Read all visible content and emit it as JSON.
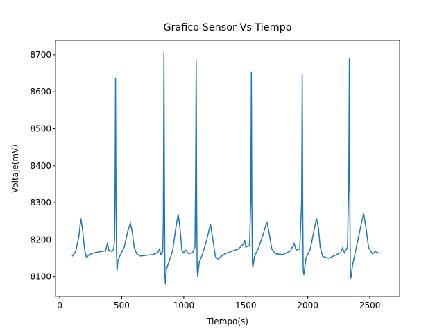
{
  "chart_data": {
    "type": "line",
    "title": "Grafico Sensor Vs Tiempo",
    "x_label": "Tiempo(s)",
    "y_label": "Voltaje(mV)",
    "x": [
      100,
      130,
      155,
      170,
      185,
      200,
      215,
      240,
      280,
      330,
      370,
      385,
      395,
      420,
      435,
      442,
      447,
      450,
      454,
      458,
      462,
      470,
      490,
      520,
      550,
      570,
      585,
      600,
      620,
      650,
      700,
      750,
      790,
      805,
      815,
      830,
      835,
      840,
      844,
      848,
      852,
      860,
      880,
      910,
      935,
      955,
      970,
      985,
      1000,
      1015,
      1040,
      1070,
      1090,
      1095,
      1100,
      1104,
      1108,
      1112,
      1125,
      1150,
      1185,
      1215,
      1235,
      1255,
      1275,
      1320,
      1380,
      1440,
      1480,
      1490,
      1500,
      1530,
      1540,
      1545,
      1549,
      1553,
      1557,
      1570,
      1600,
      1640,
      1670,
      1690,
      1710,
      1740,
      1800,
      1860,
      1890,
      1905,
      1935,
      1950,
      1955,
      1959,
      1963,
      1968,
      1985,
      2020,
      2050,
      2070,
      2085,
      2100,
      2120,
      2170,
      2220,
      2265,
      2280,
      2295,
      2320,
      2330,
      2335,
      2339,
      2343,
      2347,
      2360,
      2385,
      2420,
      2450,
      2470,
      2490,
      2520,
      2545,
      2580
    ],
    "series": [
      {
        "name": "Voltaje",
        "color": "#1f77b4",
        "values": [
          8155,
          8170,
          8210,
          8258,
          8225,
          8175,
          8152,
          8160,
          8165,
          8168,
          8170,
          8192,
          8172,
          8168,
          8175,
          8200,
          8400,
          8636,
          8300,
          8160,
          8115,
          8145,
          8160,
          8180,
          8225,
          8245,
          8220,
          8180,
          8162,
          8156,
          8158,
          8160,
          8165,
          8175,
          8160,
          8165,
          8250,
          8707,
          8350,
          8100,
          8080,
          8120,
          8140,
          8170,
          8230,
          8270,
          8230,
          8170,
          8165,
          8172,
          8162,
          8165,
          8180,
          8350,
          8685,
          8300,
          8120,
          8100,
          8140,
          8160,
          8200,
          8242,
          8200,
          8155,
          8148,
          8160,
          8168,
          8175,
          8188,
          8200,
          8180,
          8185,
          8300,
          8655,
          8300,
          8140,
          8125,
          8155,
          8175,
          8215,
          8248,
          8215,
          8175,
          8162,
          8160,
          8170,
          8190,
          8172,
          8175,
          8300,
          8648,
          8300,
          8120,
          8105,
          8150,
          8175,
          8225,
          8258,
          8235,
          8180,
          8155,
          8150,
          8158,
          8165,
          8178,
          8165,
          8180,
          8350,
          8690,
          8300,
          8110,
          8095,
          8130,
          8170,
          8225,
          8272,
          8230,
          8180,
          8162,
          8168,
          8163
        ]
      }
    ],
    "xlim": [
      -34,
      2740
    ],
    "ylim": [
      8047,
      8739
    ],
    "xticks": [
      0,
      500,
      1000,
      1500,
      2000,
      2500
    ],
    "yticks": [
      8100,
      8200,
      8300,
      8400,
      8500,
      8600,
      8700
    ]
  }
}
